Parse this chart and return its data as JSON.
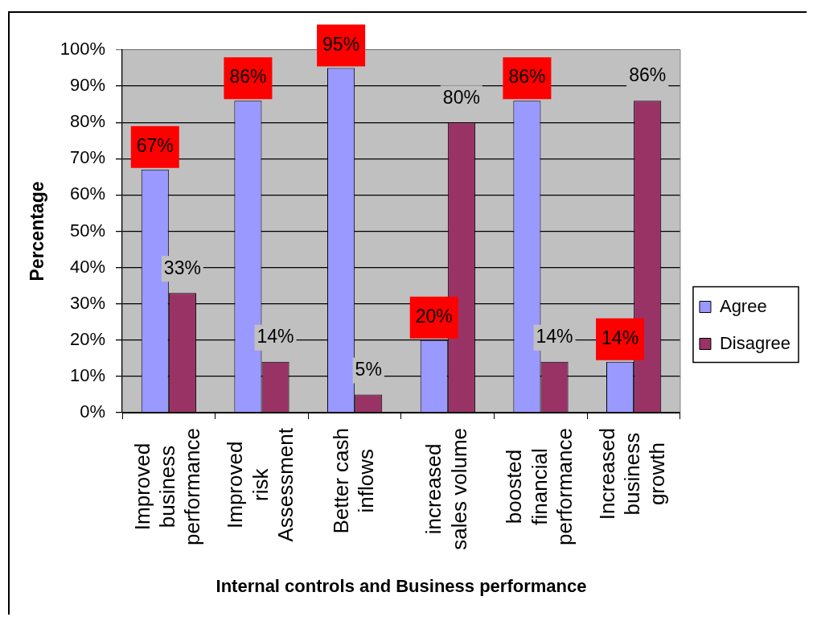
{
  "chart_data": {
    "type": "bar",
    "xlabel": "Internal controls and Business performance",
    "ylabel": "Percentage",
    "categories": [
      "Improved business performance",
      "Improved risk Assessment",
      "Better cash inflows",
      "increased sales volume",
      "boosted financial performance",
      "Increased business growth"
    ],
    "series": [
      {
        "name": "Agree",
        "color": "#9999ff",
        "values": [
          67,
          86,
          95,
          20,
          86,
          14
        ],
        "value_labels": [
          "67%",
          "86%",
          "95%",
          "20%",
          "86%",
          "14%"
        ]
      },
      {
        "name": "Disagree",
        "color": "#993366",
        "values": [
          33,
          14,
          5,
          80,
          14,
          86
        ],
        "value_labels": [
          "33%",
          "14%",
          "5%",
          "80%",
          "14%",
          "86%"
        ]
      }
    ],
    "ylim": [
      0,
      100
    ],
    "yticks": [
      {
        "value": 0,
        "label": "0%"
      },
      {
        "value": 10,
        "label": "10%"
      },
      {
        "value": 20,
        "label": "20%"
      },
      {
        "value": 30,
        "label": "30%"
      },
      {
        "value": 40,
        "label": "40%"
      },
      {
        "value": 50,
        "label": "50%"
      },
      {
        "value": 60,
        "label": "60%"
      },
      {
        "value": 70,
        "label": "70%"
      },
      {
        "value": 80,
        "label": "80%"
      },
      {
        "value": 90,
        "label": "90%"
      },
      {
        "value": 100,
        "label": "100%"
      }
    ],
    "grid": "y",
    "legend": "right"
  }
}
